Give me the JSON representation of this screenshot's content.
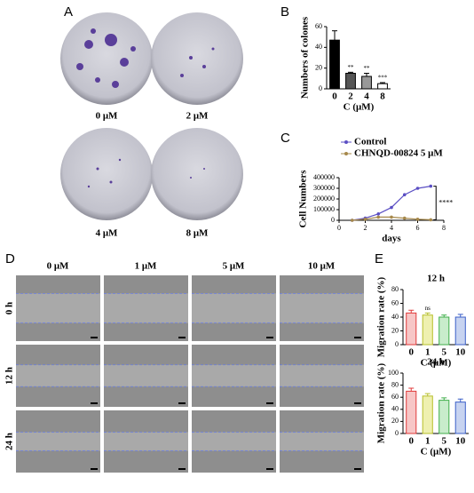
{
  "panels": {
    "a": "A",
    "b": "B",
    "c": "C",
    "d": "D",
    "e": "E"
  },
  "colony_assay": {
    "labels": [
      "0 μM",
      "2 μM",
      "4 μM",
      "8 μM"
    ]
  },
  "wound_healing": {
    "columns": [
      "0 μM",
      "1 μM",
      "5 μM",
      "10 μM"
    ],
    "rows": [
      "0 h",
      "12 h",
      "24 h"
    ]
  },
  "chart_data": [
    {
      "type": "bar",
      "ylabel": "Numbers of colones",
      "xlabel": "C (μM)",
      "categories": [
        "0",
        "2",
        "4",
        "8"
      ],
      "values": [
        47,
        15,
        12,
        5
      ],
      "errors": [
        9,
        1,
        3,
        1
      ],
      "significance": [
        null,
        "**",
        "**",
        "***"
      ],
      "colors": [
        "#000000",
        "#555555",
        "#999999",
        "#ffffff"
      ],
      "edgecolors": [
        "#000000",
        "#000000",
        "#000000",
        "#000000"
      ],
      "ylim": [
        0,
        60
      ],
      "yticks": [
        0,
        20,
        40,
        60
      ]
    },
    {
      "type": "line",
      "xlabel": "days",
      "ylabel": "Cell Numbers",
      "x": [
        1,
        2,
        3,
        4,
        5,
        6,
        7
      ],
      "series": [
        {
          "name": "Control",
          "color": "#5b4fc4",
          "values": [
            0,
            20000,
            60000,
            120000,
            240000,
            300000,
            320000
          ]
        },
        {
          "name": "CHNQD-00824  5 μM",
          "color": "#a6884a",
          "values": [
            0,
            10000,
            30000,
            30000,
            20000,
            10000,
            5000
          ]
        }
      ],
      "annotation": "****",
      "xlim": [
        0,
        8
      ],
      "xticks": [
        0,
        2,
        4,
        6,
        8
      ],
      "ylim": [
        0,
        400000
      ],
      "yticks": [
        0,
        100000,
        200000,
        300000,
        400000
      ]
    },
    {
      "type": "bar",
      "title": "12 h",
      "ylabel": "Migration rate  (%)",
      "xlabel": "C (μM)",
      "categories": [
        "0",
        "1",
        "5",
        "10"
      ],
      "values": [
        46,
        43,
        40,
        40
      ],
      "errors": [
        4,
        3,
        3,
        4
      ],
      "significance": [
        null,
        "ns",
        null,
        null
      ],
      "colors": [
        "#f7c6c6",
        "#eef0b0",
        "#c8eccb",
        "#c7d3f0"
      ],
      "edgecolors": [
        "#e03a3a",
        "#b7bf2a",
        "#3fae4a",
        "#3b5fc8"
      ],
      "ylim": [
        0,
        80
      ],
      "yticks": [
        0,
        20,
        40,
        60,
        80
      ]
    },
    {
      "type": "bar",
      "title": "24 h",
      "ylabel": "Migration rate  (%)",
      "xlabel": "C (μM)",
      "categories": [
        "0",
        "1",
        "5",
        "10"
      ],
      "values": [
        70,
        62,
        55,
        52
      ],
      "errors": [
        5,
        4,
        4,
        5
      ],
      "significance": [
        null,
        null,
        null,
        null
      ],
      "colors": [
        "#f7c6c6",
        "#eef0b0",
        "#c8eccb",
        "#c7d3f0"
      ],
      "edgecolors": [
        "#e03a3a",
        "#b7bf2a",
        "#3fae4a",
        "#3b5fc8"
      ],
      "ylim": [
        0,
        100
      ],
      "yticks": [
        0,
        20,
        40,
        60,
        80,
        100
      ]
    }
  ]
}
